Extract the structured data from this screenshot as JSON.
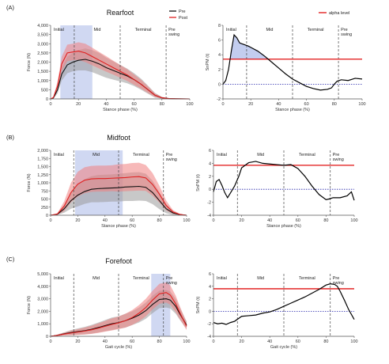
{
  "colors": {
    "pre": "#111111",
    "post": "#e02020",
    "pre_band": "#9a9a9a",
    "post_band": "#f08080",
    "stance_box": "#aab8e8",
    "alpha": "#e01010",
    "zero": "#2222aa"
  },
  "chart_data": [
    {
      "panel": "(A)",
      "title": "Rearfoot",
      "type": "line",
      "xlabel": "Stance phase (%)",
      "ylabel": "Force (N)",
      "xlim": [
        0,
        100
      ],
      "ylim": [
        0,
        4000
      ],
      "xticks": [
        0,
        20,
        40,
        60,
        80,
        100
      ],
      "yticks": [
        0,
        500,
        1000,
        1500,
        2000,
        2500,
        3000,
        3500,
        4000
      ],
      "ytick_labels": [
        "0",
        "500",
        "1,000",
        "1,500",
        "2,000",
        "2,500",
        "3,000",
        "3,500",
        "4,000"
      ],
      "phases": [
        {
          "label": "Initial",
          "end": 17
        },
        {
          "label": "Mid",
          "end": 50
        },
        {
          "label": "Terminal",
          "end": 83
        },
        {
          "label": "Pre\nswing",
          "end": 100
        }
      ],
      "highlight": [
        7,
        30
      ],
      "legend": {
        "position": "top-right",
        "entries": [
          "Pre",
          "Post"
        ]
      },
      "series": [
        {
          "name": "Pre",
          "x": [
            0,
            2,
            5,
            8,
            12,
            16,
            20,
            25,
            30,
            35,
            40,
            45,
            50,
            55,
            60,
            65,
            70,
            75,
            80,
            85,
            90,
            100
          ],
          "y": [
            0,
            50,
            500,
            1350,
            1850,
            2000,
            2100,
            2150,
            2050,
            1900,
            1700,
            1550,
            1400,
            1250,
            1050,
            800,
            500,
            200,
            60,
            20,
            10,
            0
          ],
          "sd": [
            0,
            30,
            200,
            350,
            450,
            500,
            550,
            600,
            600,
            600,
            550,
            500,
            450,
            400,
            350,
            300,
            220,
            130,
            50,
            20,
            10,
            0
          ]
        },
        {
          "name": "Post",
          "x": [
            0,
            2,
            5,
            8,
            12,
            16,
            20,
            25,
            30,
            35,
            40,
            45,
            50,
            55,
            60,
            65,
            70,
            75,
            80,
            85,
            90,
            100
          ],
          "y": [
            0,
            80,
            700,
            1900,
            2500,
            2550,
            2600,
            2500,
            2300,
            2100,
            1900,
            1700,
            1500,
            1300,
            1050,
            800,
            500,
            200,
            60,
            20,
            10,
            0
          ],
          "sd": [
            0,
            40,
            250,
            400,
            450,
            450,
            480,
            500,
            480,
            450,
            420,
            380,
            350,
            320,
            280,
            240,
            180,
            100,
            40,
            15,
            5,
            0
          ]
        }
      ]
    },
    {
      "panel": "",
      "title": "",
      "type": "line",
      "xlabel": "Stance phase (%)",
      "ylabel": "SnPM (t)",
      "xlim": [
        0,
        100
      ],
      "ylim": [
        -2,
        8
      ],
      "xticks": [
        0,
        20,
        40,
        60,
        80,
        100
      ],
      "yticks": [
        -2,
        0,
        2,
        4,
        6,
        8
      ],
      "phases": [
        {
          "label": "Initial",
          "end": 17
        },
        {
          "label": "Mid",
          "end": 50
        },
        {
          "label": "Terminal",
          "end": 83
        },
        {
          "label": "Pre\nswing",
          "end": 100
        }
      ],
      "alpha": 3.4,
      "shade_above": true,
      "legend": {
        "position": "top-right",
        "entries": [
          "alpha level"
        ]
      },
      "series": [
        {
          "name": "SnPM",
          "x": [
            0,
            2,
            4,
            6,
            8,
            10,
            12,
            15,
            18,
            20,
            25,
            30,
            35,
            40,
            45,
            50,
            55,
            60,
            65,
            70,
            75,
            78,
            80,
            82,
            85,
            90,
            95,
            100
          ],
          "y": [
            0,
            0.5,
            2,
            4.5,
            6.7,
            6.3,
            5.6,
            5.4,
            5.2,
            5,
            4.5,
            3.8,
            3,
            2.2,
            1.4,
            0.7,
            0.2,
            -0.3,
            -0.6,
            -0.8,
            -0.7,
            -0.5,
            0,
            0.4,
            0.6,
            0.5,
            0.8,
            0.7
          ]
        }
      ]
    },
    {
      "panel": "(B)",
      "title": "Midfoot",
      "type": "line",
      "xlabel": "Stance phase (%)",
      "ylabel": "Force (N)",
      "xlim": [
        0,
        100
      ],
      "ylim": [
        0,
        2000
      ],
      "xticks": [
        0,
        20,
        40,
        60,
        80,
        100
      ],
      "yticks": [
        0,
        250,
        500,
        750,
        1000,
        1250,
        1500,
        1750,
        2000
      ],
      "ytick_labels": [
        "0",
        "250",
        "500",
        "750",
        "1,000",
        "1,250",
        "1,500",
        "1,750",
        "2,000"
      ],
      "phases": [
        {
          "label": "Initial",
          "end": 17
        },
        {
          "label": "Mid",
          "end": 50
        },
        {
          "label": "Terminal",
          "end": 83
        },
        {
          "label": "Pre\nswing",
          "end": 100
        }
      ],
      "highlight": [
        18,
        53
      ],
      "series": [
        {
          "name": "Pre",
          "x": [
            0,
            5,
            10,
            15,
            20,
            25,
            30,
            35,
            40,
            45,
            50,
            55,
            60,
            65,
            70,
            75,
            80,
            85,
            90,
            95,
            100
          ],
          "y": [
            0,
            30,
            200,
            450,
            620,
            730,
            800,
            820,
            830,
            840,
            850,
            870,
            880,
            890,
            860,
            700,
            450,
            200,
            70,
            20,
            0
          ],
          "sd": [
            0,
            20,
            120,
            250,
            350,
            380,
            400,
            420,
            420,
            420,
            430,
            430,
            440,
            440,
            420,
            360,
            260,
            140,
            60,
            20,
            0
          ]
        },
        {
          "name": "Post",
          "x": [
            0,
            5,
            10,
            15,
            20,
            25,
            30,
            35,
            40,
            45,
            50,
            55,
            60,
            65,
            70,
            75,
            80,
            85,
            90,
            95,
            100
          ],
          "y": [
            0,
            40,
            280,
            700,
            960,
            1080,
            1120,
            1130,
            1130,
            1140,
            1150,
            1160,
            1180,
            1190,
            1150,
            950,
            650,
            300,
            100,
            25,
            0
          ],
          "sd": [
            0,
            25,
            150,
            300,
            380,
            400,
            400,
            400,
            400,
            400,
            420,
            420,
            430,
            430,
            400,
            350,
            260,
            150,
            60,
            20,
            0
          ]
        }
      ]
    },
    {
      "panel": "",
      "title": "",
      "type": "line",
      "xlabel": "Stance phase (%)",
      "ylabel": "SnPM (t)",
      "xlim": [
        0,
        100
      ],
      "ylim": [
        -4,
        6
      ],
      "xticks": [
        0,
        20,
        40,
        60,
        80,
        100
      ],
      "yticks": [
        -4,
        -2,
        0,
        2,
        4,
        6
      ],
      "phases": [
        {
          "label": "Initial",
          "end": 17
        },
        {
          "label": "Mid",
          "end": 50
        },
        {
          "label": "Terminal",
          "end": 83
        },
        {
          "label": "Pre\nswing",
          "end": 100
        }
      ],
      "alpha": 3.7,
      "shade_above": false,
      "series": [
        {
          "name": "SnPM",
          "x": [
            0,
            2,
            4,
            6,
            8,
            10,
            12,
            15,
            18,
            20,
            25,
            30,
            35,
            40,
            45,
            50,
            55,
            60,
            65,
            70,
            75,
            80,
            82,
            85,
            90,
            95,
            98,
            100
          ],
          "y": [
            -0.4,
            1.2,
            1.5,
            0.6,
            -0.5,
            -1.3,
            -0.6,
            0.5,
            2,
            3.3,
            4.1,
            4.3,
            4,
            3.9,
            3.8,
            3.7,
            3.8,
            3.2,
            2,
            0.5,
            -0.8,
            -1.6,
            -1.5,
            -1.3,
            -1.3,
            -1,
            -0.4,
            -1.7
          ]
        }
      ]
    },
    {
      "panel": "(C)",
      "title": "Forefoot",
      "type": "line",
      "xlabel": "Gait cycle (%)",
      "ylabel": "Force (N)",
      "xlim": [
        0,
        100
      ],
      "ylim": [
        0,
        5000
      ],
      "xticks": [
        0,
        20,
        40,
        60,
        80,
        100
      ],
      "yticks": [
        0,
        1000,
        2000,
        3000,
        4000,
        5000
      ],
      "ytick_labels": [
        "0",
        "1,000",
        "2,000",
        "3,000",
        "4,000",
        "5,000"
      ],
      "phases": [
        {
          "label": "Initial",
          "end": 17
        },
        {
          "label": "Mid",
          "end": 50
        },
        {
          "label": "Terminal",
          "end": 83
        },
        {
          "label": "Pre\nswing",
          "end": 100
        }
      ],
      "highlight": [
        74,
        88
      ],
      "series": [
        {
          "name": "Pre",
          "x": [
            0,
            5,
            10,
            15,
            20,
            25,
            30,
            35,
            40,
            45,
            50,
            55,
            60,
            65,
            70,
            75,
            80,
            85,
            88,
            92,
            95,
            100
          ],
          "y": [
            0,
            80,
            200,
            300,
            380,
            450,
            560,
            700,
            850,
            1000,
            1100,
            1250,
            1450,
            1700,
            2050,
            2550,
            2950,
            3000,
            2900,
            2400,
            1800,
            900
          ],
          "sd": [
            0,
            60,
            120,
            200,
            250,
            300,
            350,
            400,
            450,
            500,
            500,
            550,
            550,
            600,
            650,
            700,
            700,
            700,
            680,
            600,
            480,
            300
          ]
        },
        {
          "name": "Post",
          "x": [
            0,
            5,
            10,
            15,
            20,
            25,
            30,
            35,
            40,
            45,
            50,
            55,
            60,
            65,
            70,
            75,
            80,
            85,
            88,
            92,
            95,
            100
          ],
          "y": [
            0,
            80,
            180,
            260,
            340,
            420,
            520,
            650,
            800,
            950,
            1080,
            1250,
            1500,
            1850,
            2300,
            2900,
            3400,
            3500,
            3300,
            2600,
            1900,
            800
          ],
          "sd": [
            0,
            60,
            110,
            180,
            230,
            280,
            330,
            380,
            430,
            480,
            500,
            550,
            600,
            650,
            700,
            750,
            800,
            800,
            780,
            650,
            520,
            300
          ]
        }
      ]
    },
    {
      "panel": "",
      "title": "",
      "type": "line",
      "xlabel": "Gait cycle (%)",
      "ylabel": "SnPM (t)",
      "xlim": [
        0,
        100
      ],
      "ylim": [
        -4,
        6
      ],
      "xticks": [
        0,
        20,
        40,
        60,
        80,
        100
      ],
      "yticks": [
        -4,
        -2,
        0,
        2,
        4,
        6
      ],
      "phases": [
        {
          "label": "Initial",
          "end": 17
        },
        {
          "label": "Mid",
          "end": 50
        },
        {
          "label": "Terminal",
          "end": 83
        },
        {
          "label": "Pre\nswing",
          "end": 100
        }
      ],
      "alpha": 3.6,
      "shade_above": false,
      "series": [
        {
          "name": "SnPM",
          "x": [
            0,
            3,
            6,
            9,
            12,
            15,
            20,
            25,
            30,
            35,
            40,
            45,
            50,
            55,
            60,
            65,
            70,
            75,
            80,
            83,
            86,
            88,
            90,
            93,
            96,
            100
          ],
          "y": [
            -1.8,
            -2,
            -1.9,
            -2.1,
            -1.8,
            -1.6,
            -0.8,
            -0.7,
            -0.6,
            -0.3,
            -0.1,
            0.3,
            0.8,
            1.3,
            1.8,
            2.3,
            2.9,
            3.5,
            4.2,
            4.4,
            4.3,
            4,
            3.2,
            1.8,
            0.3,
            -1.3
          ]
        }
      ]
    }
  ]
}
